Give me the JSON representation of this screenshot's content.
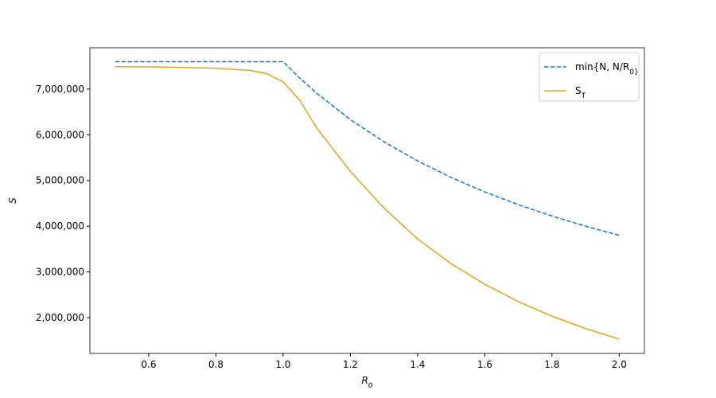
{
  "chart_data": {
    "type": "line",
    "x_label": "R_0",
    "y_label": "S",
    "x": [
      0.5,
      0.6,
      0.7,
      0.8,
      0.9,
      0.95,
      1.0,
      1.05,
      1.1,
      1.2,
      1.3,
      1.4,
      1.5,
      1.6,
      1.7,
      1.8,
      1.9,
      2.0
    ],
    "series": [
      {
        "name": "min{N, N/R_0}",
        "color": "#1f77b4",
        "dash": true,
        "values": [
          7600000,
          7600000,
          7600000,
          7600000,
          7600000,
          7600000,
          7600000,
          7238095,
          6909091,
          6333333,
          5846154,
          5428571,
          5066667,
          4750000,
          4470588,
          4222222,
          4000000,
          3800000
        ]
      },
      {
        "name": "S_T",
        "color": "#daa520",
        "dash": false,
        "values": [
          7490000,
          7485000,
          7475000,
          7455000,
          7410000,
          7340000,
          7160000,
          6750000,
          6150000,
          5200000,
          4400000,
          3720000,
          3180000,
          2730000,
          2350000,
          2030000,
          1760000,
          1530000
        ]
      }
    ],
    "xlim": [
      0.425,
      2.075
    ],
    "xticks": [
      0.6,
      0.8,
      {
        "value": 1,
        "label": "1.0"
      },
      1.2,
      1.4,
      1.6,
      1.8,
      {
        "value": 2,
        "label": "2.0"
      }
    ],
    "ylim": [
      1216000,
      7904000
    ],
    "yticks": [
      {
        "value": 2000000,
        "label": "2,000,000"
      },
      {
        "value": 3000000,
        "label": "3,000,000"
      },
      {
        "value": 4000000,
        "label": "4,000,000"
      },
      {
        "value": 5000000,
        "label": "5,000,000"
      },
      {
        "value": 6000000,
        "label": "6,000,000"
      },
      {
        "value": 7000000,
        "label": "7,000,000"
      }
    ],
    "legend": "upper right",
    "grid": false
  }
}
